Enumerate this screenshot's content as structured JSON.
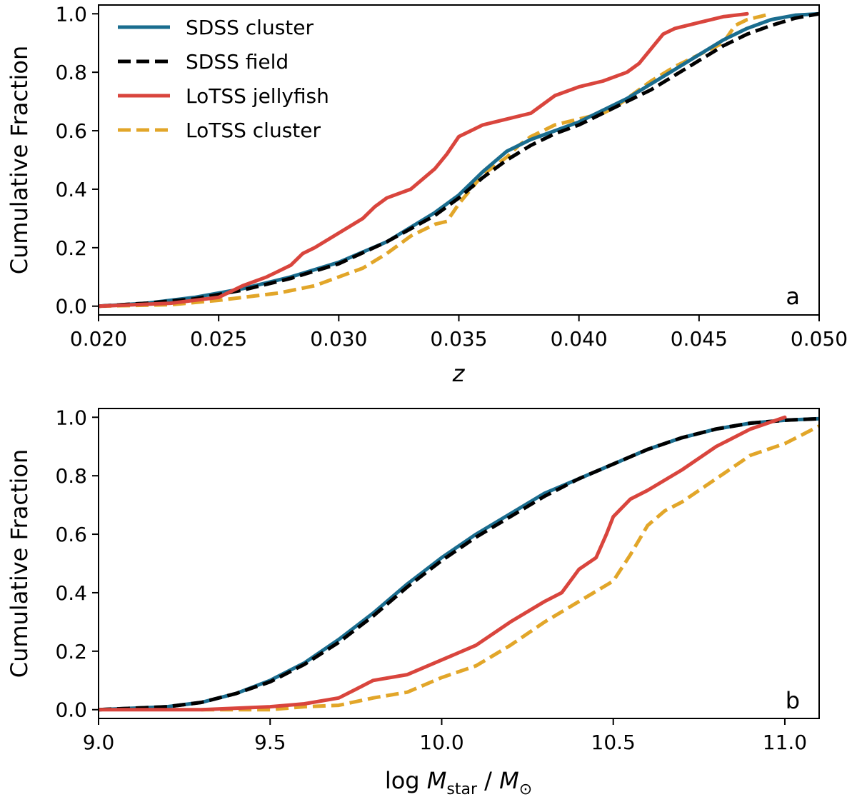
{
  "figure": {
    "legend": {
      "placement": "top-left",
      "entries": [
        {
          "series": "sdss_cluster",
          "label": "SDSS cluster"
        },
        {
          "series": "sdss_field",
          "label": "SDSS field"
        },
        {
          "series": "lotss_jellyfish",
          "label": "LoTSS jellyfish"
        },
        {
          "series": "lotss_cluster",
          "label": "LoTSS cluster"
        }
      ]
    }
  },
  "series_styles": {
    "sdss_cluster": {
      "color": "#1a6d8f",
      "dashed": false
    },
    "sdss_field": {
      "color": "#000000",
      "dashed": true
    },
    "lotss_jellyfish": {
      "color": "#d9453d",
      "dashed": false
    },
    "lotss_cluster": {
      "color": "#e2a629",
      "dashed": true
    }
  },
  "chart_data": [
    {
      "type": "line",
      "panel": "a",
      "xlabel": "z",
      "ylabel": "Cumulative Fraction",
      "xlim": [
        0.02,
        0.05
      ],
      "ylim": [
        -0.03,
        1.03
      ],
      "xticks": [
        0.02,
        0.025,
        0.03,
        0.035,
        0.04,
        0.045,
        0.05
      ],
      "xtick_labels": [
        "0.020",
        "0.025",
        "0.030",
        "0.035",
        "0.040",
        "0.045",
        "0.050"
      ],
      "yticks": [
        0.0,
        0.2,
        0.4,
        0.6,
        0.8,
        1.0
      ],
      "ytick_labels": [
        "0.0",
        "0.2",
        "0.4",
        "0.6",
        "0.8",
        "1.0"
      ],
      "grid": false,
      "series": [
        {
          "id": "lotss_cluster",
          "name": "LoTSS cluster",
          "x": [
            0.02,
            0.023,
            0.025,
            0.0265,
            0.0275,
            0.029,
            0.03,
            0.031,
            0.032,
            0.033,
            0.034,
            0.0345,
            0.035,
            0.0355,
            0.036,
            0.0365,
            0.037,
            0.0375,
            0.038,
            0.0385,
            0.039,
            0.04,
            0.041,
            0.0415,
            0.042,
            0.043,
            0.044,
            0.045,
            0.0455,
            0.046,
            0.0465,
            0.047,
            0.0475,
            0.048
          ],
          "y": [
            0.0,
            0.005,
            0.02,
            0.035,
            0.045,
            0.07,
            0.1,
            0.13,
            0.18,
            0.24,
            0.28,
            0.29,
            0.35,
            0.4,
            0.45,
            0.48,
            0.51,
            0.55,
            0.58,
            0.6,
            0.62,
            0.64,
            0.66,
            0.68,
            0.71,
            0.77,
            0.82,
            0.86,
            0.88,
            0.9,
            0.96,
            0.98,
            0.99,
            1.0
          ]
        },
        {
          "id": "sdss_cluster",
          "name": "SDSS cluster",
          "x": [
            0.02,
            0.022,
            0.024,
            0.026,
            0.028,
            0.03,
            0.032,
            0.034,
            0.035,
            0.036,
            0.037,
            0.038,
            0.039,
            0.04,
            0.041,
            0.042,
            0.043,
            0.044,
            0.045,
            0.046,
            0.047,
            0.048,
            0.049,
            0.05
          ],
          "y": [
            0.0,
            0.01,
            0.03,
            0.06,
            0.1,
            0.15,
            0.22,
            0.32,
            0.38,
            0.46,
            0.53,
            0.57,
            0.6,
            0.63,
            0.67,
            0.71,
            0.76,
            0.81,
            0.86,
            0.91,
            0.95,
            0.98,
            0.995,
            1.0
          ]
        },
        {
          "id": "sdss_field",
          "name": "SDSS field",
          "x": [
            0.02,
            0.022,
            0.024,
            0.026,
            0.028,
            0.03,
            0.032,
            0.034,
            0.035,
            0.036,
            0.037,
            0.038,
            0.039,
            0.04,
            0.041,
            0.042,
            0.043,
            0.044,
            0.045,
            0.046,
            0.047,
            0.048,
            0.049,
            0.05
          ],
          "y": [
            0.0,
            0.01,
            0.025,
            0.055,
            0.095,
            0.145,
            0.22,
            0.31,
            0.37,
            0.44,
            0.5,
            0.55,
            0.59,
            0.62,
            0.66,
            0.7,
            0.74,
            0.79,
            0.84,
            0.89,
            0.93,
            0.96,
            0.985,
            1.0
          ]
        },
        {
          "id": "lotss_jellyfish",
          "name": "LoTSS jellyfish",
          "x": [
            0.02,
            0.023,
            0.025,
            0.026,
            0.027,
            0.028,
            0.0285,
            0.029,
            0.03,
            0.031,
            0.0315,
            0.032,
            0.033,
            0.034,
            0.0345,
            0.035,
            0.0355,
            0.036,
            0.037,
            0.038,
            0.0385,
            0.039,
            0.04,
            0.041,
            0.042,
            0.0425,
            0.043,
            0.0435,
            0.044,
            0.045,
            0.046,
            0.047
          ],
          "y": [
            0.0,
            0.01,
            0.03,
            0.07,
            0.1,
            0.14,
            0.18,
            0.2,
            0.25,
            0.3,
            0.34,
            0.37,
            0.4,
            0.47,
            0.52,
            0.58,
            0.6,
            0.62,
            0.64,
            0.66,
            0.69,
            0.72,
            0.75,
            0.77,
            0.8,
            0.83,
            0.88,
            0.93,
            0.95,
            0.97,
            0.99,
            1.0
          ]
        }
      ]
    },
    {
      "type": "line",
      "panel": "b",
      "xlabel": "log M_star / M_⊙",
      "ylabel": "Cumulative Fraction",
      "xlim": [
        9.0,
        11.1
      ],
      "ylim": [
        -0.03,
        1.03
      ],
      "xticks": [
        9.0,
        9.5,
        10.0,
        10.5,
        11.0
      ],
      "xtick_labels": [
        "9.0",
        "9.5",
        "10.0",
        "10.5",
        "11.0"
      ],
      "yticks": [
        0.0,
        0.2,
        0.4,
        0.6,
        0.8,
        1.0
      ],
      "ytick_labels": [
        "0.0",
        "0.2",
        "0.4",
        "0.6",
        "0.8",
        "1.0"
      ],
      "grid": false,
      "series": [
        {
          "id": "lotss_cluster",
          "name": "LoTSS cluster",
          "x": [
            9.3,
            9.5,
            9.6,
            9.7,
            9.8,
            9.9,
            10.0,
            10.1,
            10.2,
            10.3,
            10.4,
            10.5,
            10.55,
            10.6,
            10.65,
            10.7,
            10.8,
            10.9,
            11.0,
            11.1
          ],
          "y": [
            0.0,
            0.0,
            0.01,
            0.015,
            0.04,
            0.06,
            0.11,
            0.15,
            0.22,
            0.3,
            0.37,
            0.44,
            0.53,
            0.63,
            0.68,
            0.71,
            0.79,
            0.87,
            0.91,
            0.97
          ]
        },
        {
          "id": "sdss_cluster",
          "name": "SDSS cluster",
          "x": [
            9.0,
            9.2,
            9.3,
            9.4,
            9.5,
            9.6,
            9.7,
            9.8,
            9.9,
            10.0,
            10.1,
            10.2,
            10.3,
            10.4,
            10.5,
            10.6,
            10.7,
            10.8,
            10.9,
            11.0,
            11.1
          ],
          "y": [
            0.0,
            0.01,
            0.025,
            0.055,
            0.1,
            0.16,
            0.24,
            0.33,
            0.43,
            0.52,
            0.6,
            0.67,
            0.74,
            0.79,
            0.84,
            0.89,
            0.93,
            0.96,
            0.98,
            0.99,
            0.995
          ]
        },
        {
          "id": "sdss_field",
          "name": "SDSS field",
          "x": [
            9.0,
            9.2,
            9.3,
            9.4,
            9.5,
            9.6,
            9.7,
            9.8,
            9.9,
            10.0,
            10.1,
            10.2,
            10.3,
            10.4,
            10.5,
            10.6,
            10.7,
            10.8,
            10.9,
            11.0,
            11.1
          ],
          "y": [
            0.0,
            0.01,
            0.025,
            0.055,
            0.095,
            0.155,
            0.23,
            0.32,
            0.42,
            0.51,
            0.59,
            0.66,
            0.73,
            0.79,
            0.84,
            0.89,
            0.93,
            0.96,
            0.98,
            0.99,
            0.995
          ]
        },
        {
          "id": "lotss_jellyfish",
          "name": "LoTSS jellyfish",
          "x": [
            9.0,
            9.3,
            9.5,
            9.6,
            9.7,
            9.75,
            9.8,
            9.9,
            10.0,
            10.1,
            10.2,
            10.3,
            10.35,
            10.4,
            10.45,
            10.48,
            10.5,
            10.55,
            10.6,
            10.7,
            10.8,
            10.9,
            10.95,
            11.0
          ],
          "y": [
            0.0,
            0.0,
            0.01,
            0.02,
            0.04,
            0.07,
            0.1,
            0.12,
            0.17,
            0.22,
            0.3,
            0.37,
            0.4,
            0.48,
            0.52,
            0.6,
            0.66,
            0.72,
            0.75,
            0.82,
            0.9,
            0.96,
            0.98,
            1.0
          ]
        }
      ]
    }
  ]
}
